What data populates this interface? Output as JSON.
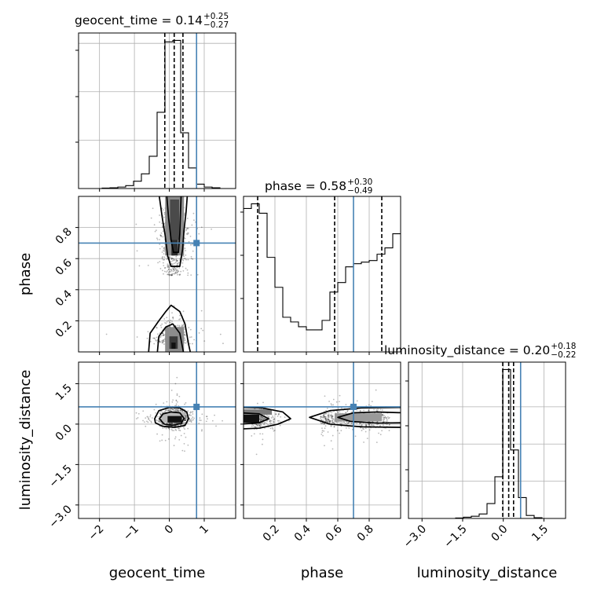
{
  "chart_data": {
    "type": "corner",
    "truth_color": "#4682b4",
    "parameters": [
      {
        "name": "geocent_time",
        "range": [
          -2.6,
          1.9
        ],
        "ticks": [
          -2,
          -1,
          0,
          1
        ],
        "tick_labels": [
          "−2",
          "−1",
          "0",
          "1"
        ],
        "truth": 0.78,
        "title_name": "geocent_time",
        "title_value": "0.14",
        "title_plus": "+0.25",
        "title_minus": "−0.27",
        "quantiles": [
          -0.13,
          0.14,
          0.39
        ]
      },
      {
        "name": "phase",
        "range": [
          0.0,
          1.0
        ],
        "ticks": [
          0.2,
          0.4,
          0.6,
          0.8
        ],
        "tick_labels": [
          "0.2",
          "0.4",
          "0.6",
          "0.8"
        ],
        "truth": 0.7,
        "title_name": "phase",
        "title_value": "0.58",
        "title_plus": "+0.30",
        "title_minus": "−0.49",
        "quantiles": [
          0.09,
          0.58,
          0.88
        ]
      },
      {
        "name": "luminosity_distance",
        "range": [
          -3.5,
          2.3
        ],
        "ticks": [
          -3.0,
          -1.5,
          0.0,
          1.5
        ],
        "tick_labels": [
          "−3.0",
          "−1.5",
          "0.0",
          "1.5"
        ],
        "truth": 0.64,
        "title_name": "luminosity_distance",
        "title_value": "0.20",
        "title_plus": "+0.18",
        "title_minus": "−0.22",
        "quantiles": [
          -0.02,
          0.2,
          0.38
        ]
      }
    ],
    "histograms": [
      {
        "param": "geocent_time",
        "bin_edges": [
          -2.6,
          -2.375,
          -2.15,
          -1.925,
          -1.7,
          -1.475,
          -1.25,
          -1.025,
          -0.8,
          -0.575,
          -0.35,
          -0.125,
          0.1,
          0.325,
          0.55,
          0.775,
          1.0,
          1.225,
          1.45,
          1.675,
          1.9
        ],
        "counts": [
          0,
          0,
          0,
          0.3,
          0.5,
          1,
          2,
          5,
          10,
          22,
          52,
          100,
          101,
          38,
          14,
          3,
          1,
          0.5,
          0,
          0
        ]
      },
      {
        "param": "phase",
        "bin_edges": [
          0.0,
          0.05,
          0.1,
          0.15,
          0.2,
          0.25,
          0.3,
          0.35,
          0.4,
          0.45,
          0.5,
          0.55,
          0.6,
          0.65,
          0.7,
          0.75,
          0.8,
          0.85,
          0.9,
          0.95,
          1.0
        ],
        "counts": [
          91,
          94,
          88,
          60,
          41,
          22,
          19,
          16,
          14,
          14,
          20,
          38,
          44,
          54,
          56,
          57,
          58,
          62,
          66,
          75
        ]
      },
      {
        "param": "luminosity_distance",
        "bin_edges": [
          -3.5,
          -3.21,
          -2.92,
          -2.63,
          -2.34,
          -2.05,
          -1.76,
          -1.47,
          -1.18,
          -0.89,
          -0.6,
          -0.31,
          -0.02,
          0.27,
          0.56,
          0.85,
          1.14,
          1.43,
          1.72,
          2.01,
          2.3
        ],
        "counts": [
          0,
          0,
          0,
          0,
          0,
          0,
          0.3,
          0.8,
          1.5,
          3,
          10,
          28,
          100,
          46,
          14,
          2,
          0.5,
          0,
          0,
          0
        ]
      }
    ],
    "joint": [
      {
        "x": "geocent_time",
        "y": "phase"
      },
      {
        "x": "geocent_time",
        "y": "luminosity_distance"
      },
      {
        "x": "phase",
        "y": "luminosity_distance"
      }
    ]
  }
}
